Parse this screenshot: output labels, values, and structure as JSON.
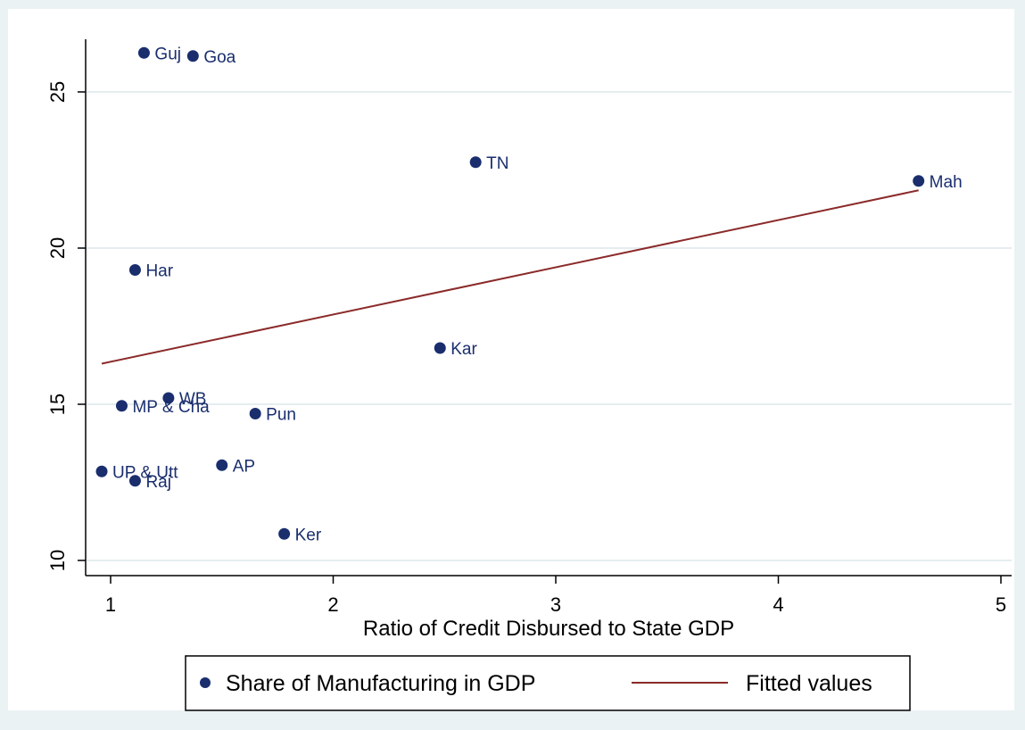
{
  "chart_data": {
    "type": "scatter",
    "title": "",
    "xlabel": "Ratio of Credit Disbursed to State GDP",
    "ylabel": "",
    "xlim": [
      0.9,
      5.06
    ],
    "ylim": [
      9.5,
      26.8
    ],
    "x_ticks": [
      1,
      2,
      3,
      4,
      5
    ],
    "y_ticks": [
      10,
      15,
      20,
      25
    ],
    "grid": "horizontal",
    "legend_placement": "bottom",
    "series": [
      {
        "name": "Share of Manufacturing in GDP",
        "kind": "scatter",
        "color": "#1a2e6e",
        "points": [
          {
            "label": "Guj",
            "x": 1.15,
            "y": 26.25
          },
          {
            "label": "Goa",
            "x": 1.37,
            "y": 26.15
          },
          {
            "label": "TN",
            "x": 2.64,
            "y": 22.75
          },
          {
            "label": "Mah",
            "x": 4.63,
            "y": 22.15
          },
          {
            "label": "Har",
            "x": 1.11,
            "y": 19.3
          },
          {
            "label": "Kar",
            "x": 2.48,
            "y": 16.8
          },
          {
            "label": "WB",
            "x": 1.26,
            "y": 15.2
          },
          {
            "label": "MP & Cha",
            "x": 1.05,
            "y": 14.95
          },
          {
            "label": "Pun",
            "x": 1.65,
            "y": 14.7
          },
          {
            "label": "AP",
            "x": 1.5,
            "y": 13.05
          },
          {
            "label": "UP & Utt",
            "x": 0.96,
            "y": 12.85
          },
          {
            "label": "Raj",
            "x": 1.11,
            "y": 12.55
          },
          {
            "label": "Ker",
            "x": 1.78,
            "y": 10.85
          }
        ]
      },
      {
        "name": "Fitted values",
        "kind": "line",
        "color": "#8b2a2a",
        "x": [
          0.96,
          4.63
        ],
        "y": [
          16.3,
          21.85
        ]
      }
    ],
    "colors": {
      "background_outer": "#eaf2f3",
      "plot_background": "#ffffff",
      "gridline": "#e5edf0",
      "axis": "#000000"
    }
  }
}
